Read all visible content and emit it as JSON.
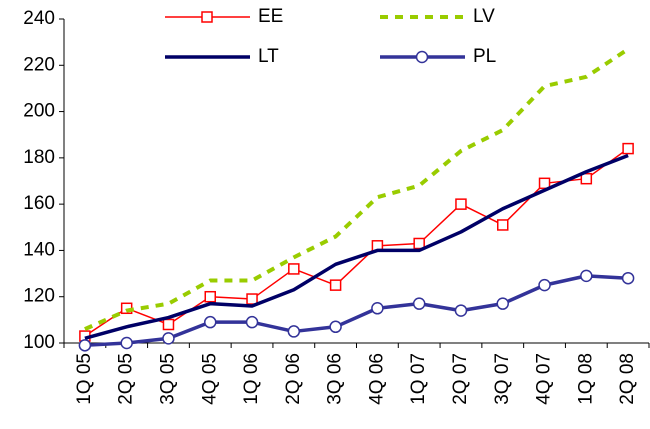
{
  "chart_data": {
    "type": "line",
    "categories": [
      "1Q 05",
      "2Q 05",
      "3Q 05",
      "4Q 05",
      "1Q 06",
      "2Q 06",
      "3Q 06",
      "4Q 06",
      "1Q 07",
      "2Q 07",
      "3Q 07",
      "4Q 07",
      "1Q 08",
      "2Q 08"
    ],
    "series": [
      {
        "name": "EE",
        "color": "#ff0000",
        "marker": "square",
        "dash": false,
        "width": 1.5,
        "values": [
          103,
          115,
          108,
          120,
          119,
          132,
          125,
          142,
          143,
          160,
          151,
          169,
          171,
          184
        ]
      },
      {
        "name": "LV",
        "color": "#99cc00",
        "marker": "none",
        "dash": true,
        "width": 4,
        "values": [
          106,
          114,
          117,
          127,
          127,
          137,
          146,
          163,
          168,
          183,
          192,
          211,
          215,
          227
        ]
      },
      {
        "name": "LT",
        "color": "#000066",
        "marker": "none",
        "dash": false,
        "width": 3.5,
        "values": [
          102,
          107,
          111,
          117,
          116,
          123,
          134,
          140,
          140,
          148,
          158,
          166,
          174,
          181
        ]
      },
      {
        "name": "PL",
        "color": "#333399",
        "marker": "circle",
        "dash": false,
        "width": 3.5,
        "values": [
          99,
          100,
          102,
          109,
          109,
          105,
          107,
          115,
          117,
          114,
          117,
          125,
          129,
          128
        ]
      }
    ],
    "ylim": [
      100,
      240
    ],
    "yticks": [
      100,
      120,
      140,
      160,
      180,
      200,
      220,
      240
    ],
    "grid": false,
    "legend": "top"
  }
}
